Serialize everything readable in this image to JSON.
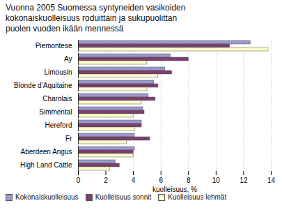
{
  "chart_data": {
    "type": "bar",
    "orientation": "horizontal",
    "title": "Vuonna 2005 Suomessa syntyneiden vasikoiden\nkokonaiskuolleisuus roduittain ja sukupuolittan\npuolen vuoden ikään mennessä",
    "categories": [
      "Piemontese",
      "Ay",
      "Limousin",
      "Blonde d’Aquitaine",
      "Charolais",
      "Simmental",
      "Hereford",
      "Fr",
      "Aberdeen Angus",
      "High Land Cattle"
    ],
    "series": [
      {
        "name": "Kokonaiskuolleisuus",
        "color": "#9999cc",
        "values": [
          12.5,
          6.7,
          6.3,
          5.5,
          5.1,
          4.7,
          4.6,
          4.1,
          4.1,
          2.7
        ]
      },
      {
        "name": "Kuolleisuus sonnit",
        "color": "#7b3f6e",
        "values": [
          11.0,
          8.0,
          6.8,
          5.8,
          5.6,
          4.8,
          4.6,
          5.2,
          4.0,
          3.0
        ]
      },
      {
        "name": "Kuolleisuus lehmät",
        "color": "#ffffcc",
        "values": [
          13.8,
          5.0,
          5.8,
          5.0,
          4.6,
          4.0,
          4.1,
          3.5,
          4.0,
          2.3
        ]
      }
    ],
    "xlabel": "kuolleisuus, %",
    "xlim": [
      0,
      14
    ],
    "xticks": [
      0,
      2,
      4,
      6,
      8,
      10,
      12,
      14
    ],
    "grid": true,
    "legend": "bottom"
  }
}
